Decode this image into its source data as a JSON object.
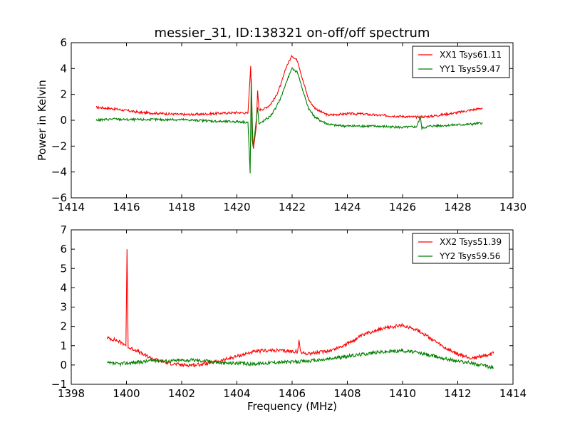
{
  "chart_data": [
    {
      "type": "line",
      "title": "messier_31, ID:138321 on-off/off spectrum",
      "xlabel": "",
      "ylabel": "Power in Kelvin",
      "xlim": [
        1414,
        1430
      ],
      "ylim": [
        -6,
        6
      ],
      "xticks": [
        1414,
        1416,
        1418,
        1420,
        1422,
        1424,
        1426,
        1428,
        1430
      ],
      "yticks": [
        -6,
        -4,
        -2,
        0,
        2,
        4,
        6
      ],
      "legend_position": "top-right",
      "series": [
        {
          "name": "XX1 Tsys61.11",
          "color": "#ff0000",
          "points": [
            [
              1414.9,
              1.0
            ],
            [
              1415.5,
              0.9
            ],
            [
              1416.0,
              0.75
            ],
            [
              1416.5,
              0.6
            ],
            [
              1417.0,
              0.55
            ],
            [
              1417.5,
              0.5
            ],
            [
              1418.0,
              0.45
            ],
            [
              1418.5,
              0.45
            ],
            [
              1419.0,
              0.5
            ],
            [
              1419.5,
              0.55
            ],
            [
              1420.0,
              0.6
            ],
            [
              1420.4,
              0.55
            ],
            [
              1420.5,
              4.2
            ],
            [
              1420.55,
              -1.5
            ],
            [
              1420.6,
              -2.2
            ],
            [
              1420.7,
              -0.5
            ],
            [
              1420.75,
              2.3
            ],
            [
              1420.8,
              0.8
            ],
            [
              1421.0,
              0.9
            ],
            [
              1421.2,
              1.2
            ],
            [
              1421.4,
              1.8
            ],
            [
              1421.6,
              2.8
            ],
            [
              1421.8,
              4.2
            ],
            [
              1422.0,
              5.0
            ],
            [
              1422.2,
              4.6
            ],
            [
              1422.4,
              3.0
            ],
            [
              1422.6,
              1.6
            ],
            [
              1422.8,
              1.0
            ],
            [
              1423.0,
              0.7
            ],
            [
              1423.3,
              0.4
            ],
            [
              1423.6,
              0.45
            ],
            [
              1424.0,
              0.5
            ],
            [
              1424.5,
              0.5
            ],
            [
              1425.0,
              0.4
            ],
            [
              1425.5,
              0.35
            ],
            [
              1426.0,
              0.3
            ],
            [
              1426.5,
              0.25
            ],
            [
              1427.0,
              0.3
            ],
            [
              1427.5,
              0.45
            ],
            [
              1428.0,
              0.6
            ],
            [
              1428.5,
              0.8
            ],
            [
              1428.9,
              0.95
            ]
          ]
        },
        {
          "name": "YY1 Tsys59.47",
          "color": "#007f00",
          "points": [
            [
              1414.9,
              0.0
            ],
            [
              1415.5,
              0.1
            ],
            [
              1416.0,
              0.05
            ],
            [
              1416.5,
              0.05
            ],
            [
              1417.0,
              0.05
            ],
            [
              1417.5,
              0.05
            ],
            [
              1418.0,
              0.05
            ],
            [
              1418.5,
              0.0
            ],
            [
              1419.0,
              -0.05
            ],
            [
              1419.5,
              -0.1
            ],
            [
              1420.0,
              -0.1
            ],
            [
              1420.4,
              -0.15
            ],
            [
              1420.48,
              -4.1
            ],
            [
              1420.52,
              3.2
            ],
            [
              1420.58,
              -2.0
            ],
            [
              1420.65,
              -1.0
            ],
            [
              1420.75,
              1.0
            ],
            [
              1420.8,
              -0.3
            ],
            [
              1421.0,
              0.0
            ],
            [
              1421.2,
              0.3
            ],
            [
              1421.4,
              0.9
            ],
            [
              1421.6,
              1.8
            ],
            [
              1421.8,
              3.0
            ],
            [
              1422.0,
              4.0
            ],
            [
              1422.2,
              3.7
            ],
            [
              1422.4,
              2.2
            ],
            [
              1422.6,
              0.9
            ],
            [
              1422.8,
              0.3
            ],
            [
              1423.0,
              0.0
            ],
            [
              1423.3,
              -0.3
            ],
            [
              1423.6,
              -0.4
            ],
            [
              1424.0,
              -0.45
            ],
            [
              1424.5,
              -0.45
            ],
            [
              1425.0,
              -0.45
            ],
            [
              1425.5,
              -0.5
            ],
            [
              1426.0,
              -0.55
            ],
            [
              1426.5,
              -0.5
            ],
            [
              1426.65,
              0.2
            ],
            [
              1426.7,
              -0.6
            ],
            [
              1427.0,
              -0.45
            ],
            [
              1427.5,
              -0.4
            ],
            [
              1428.0,
              -0.35
            ],
            [
              1428.5,
              -0.3
            ],
            [
              1428.9,
              -0.2
            ]
          ]
        }
      ]
    },
    {
      "type": "line",
      "title": "",
      "xlabel": "Frequency (MHz)",
      "ylabel": "",
      "xlim": [
        1398,
        1414
      ],
      "ylim": [
        -1,
        7
      ],
      "xticks": [
        1398,
        1400,
        1402,
        1404,
        1406,
        1408,
        1410,
        1412,
        1414
      ],
      "yticks": [
        -1,
        0,
        1,
        2,
        3,
        4,
        5,
        6,
        7
      ],
      "legend_position": "top-right",
      "series": [
        {
          "name": "XX2 Tsys51.39",
          "color": "#ff0000",
          "points": [
            [
              1399.3,
              1.4
            ],
            [
              1399.6,
              1.3
            ],
            [
              1399.9,
              1.1
            ],
            [
              1399.98,
              1.0
            ],
            [
              1400.02,
              6.0
            ],
            [
              1400.06,
              0.9
            ],
            [
              1400.3,
              0.8
            ],
            [
              1400.6,
              0.55
            ],
            [
              1401.0,
              0.3
            ],
            [
              1401.5,
              0.1
            ],
            [
              1402.0,
              0.0
            ],
            [
              1402.5,
              0.0
            ],
            [
              1403.0,
              0.1
            ],
            [
              1403.5,
              0.25
            ],
            [
              1404.0,
              0.45
            ],
            [
              1404.5,
              0.65
            ],
            [
              1405.0,
              0.75
            ],
            [
              1405.5,
              0.75
            ],
            [
              1406.0,
              0.7
            ],
            [
              1406.2,
              0.7
            ],
            [
              1406.25,
              1.3
            ],
            [
              1406.3,
              0.65
            ],
            [
              1406.5,
              0.6
            ],
            [
              1407.0,
              0.65
            ],
            [
              1407.5,
              0.8
            ],
            [
              1408.0,
              1.1
            ],
            [
              1408.5,
              1.5
            ],
            [
              1409.0,
              1.8
            ],
            [
              1409.5,
              1.95
            ],
            [
              1410.0,
              2.05
            ],
            [
              1410.5,
              1.85
            ],
            [
              1411.0,
              1.4
            ],
            [
              1411.5,
              0.9
            ],
            [
              1412.0,
              0.55
            ],
            [
              1412.5,
              0.35
            ],
            [
              1413.0,
              0.5
            ],
            [
              1413.3,
              0.6
            ]
          ]
        },
        {
          "name": "YY2 Tsys59.56",
          "color": "#007f00",
          "points": [
            [
              1399.3,
              0.1
            ],
            [
              1399.7,
              0.05
            ],
            [
              1400.0,
              0.1
            ],
            [
              1400.5,
              0.15
            ],
            [
              1401.0,
              0.25
            ],
            [
              1401.5,
              0.2
            ],
            [
              1402.0,
              0.25
            ],
            [
              1402.5,
              0.25
            ],
            [
              1403.0,
              0.2
            ],
            [
              1403.5,
              0.1
            ],
            [
              1404.0,
              0.1
            ],
            [
              1404.5,
              0.05
            ],
            [
              1405.0,
              0.1
            ],
            [
              1405.5,
              0.15
            ],
            [
              1406.0,
              0.15
            ],
            [
              1406.5,
              0.2
            ],
            [
              1407.0,
              0.25
            ],
            [
              1407.5,
              0.35
            ],
            [
              1408.0,
              0.45
            ],
            [
              1408.5,
              0.55
            ],
            [
              1409.0,
              0.65
            ],
            [
              1409.5,
              0.7
            ],
            [
              1410.0,
              0.75
            ],
            [
              1410.5,
              0.65
            ],
            [
              1411.0,
              0.5
            ],
            [
              1411.5,
              0.35
            ],
            [
              1412.0,
              0.2
            ],
            [
              1412.5,
              0.1
            ],
            [
              1413.0,
              -0.05
            ],
            [
              1413.3,
              -0.15
            ]
          ]
        }
      ]
    }
  ]
}
